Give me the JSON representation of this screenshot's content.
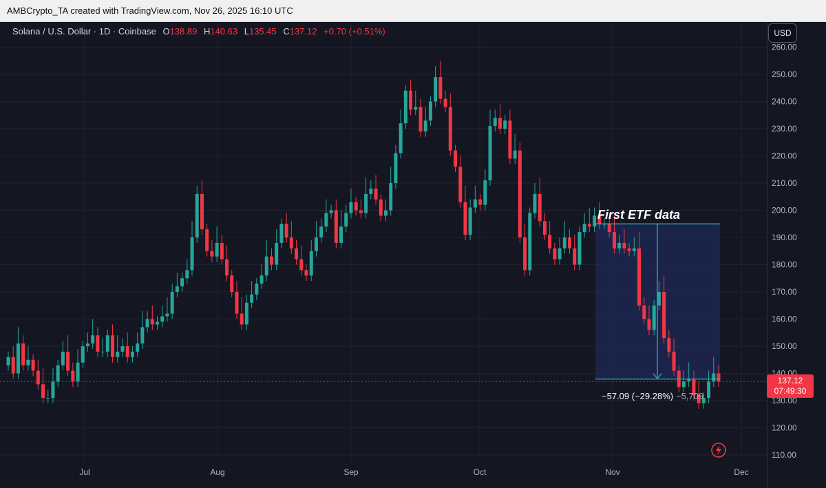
{
  "header": {
    "attribution": "AMBCrypto_TA created with TradingView.com, Nov 26, 2025 16:10 UTC"
  },
  "symbol": {
    "name": "Solana / U.S. Dollar · 1D · Coinbase",
    "open_label": "O",
    "open": "138.89",
    "high_label": "H",
    "high": "140.63",
    "low_label": "L",
    "low": "135.45",
    "close_label": "C",
    "close": "137.12",
    "change": "+0.70 (+0.51%)"
  },
  "currency_button": "USD",
  "price_tag": {
    "price": "137.12",
    "countdown": "07:49:30"
  },
  "annotations": {
    "etf_label": "First ETF data",
    "measure": "−57.09 (−29.28%)",
    "measure_overlap": "−5,709"
  },
  "colors": {
    "up": "#26a69a",
    "down": "#f23645",
    "background": "#141722",
    "highlight_box": "#1e2a55",
    "measure_line": "#2fb7c8"
  },
  "chart_data": {
    "type": "candlestick",
    "yaxis": {
      "ticks": [
        "110.00",
        "120.00",
        "130.00",
        "140.00",
        "150.00",
        "160.00",
        "170.00",
        "180.00",
        "190.00",
        "200.00",
        "210.00",
        "220.00",
        "230.00",
        "240.00",
        "250.00",
        "260.00"
      ],
      "ylim": [
        107,
        262
      ]
    },
    "xaxis": {
      "ticks": [
        "Jul",
        "Aug",
        "Sep",
        "Oct",
        "Nov",
        "Dec"
      ]
    },
    "closes": [
      146,
      140,
      151,
      143,
      145,
      141,
      136,
      131,
      131,
      137,
      143,
      148,
      141,
      137,
      144,
      150,
      151,
      154,
      148,
      148,
      154,
      146,
      148,
      150,
      146,
      148,
      151,
      157,
      160,
      158,
      159,
      161,
      162,
      170,
      172,
      175,
      178,
      190,
      206,
      193,
      185,
      183,
      188,
      182,
      176,
      170,
      162,
      158,
      166,
      169,
      173,
      176,
      183,
      180,
      188,
      195,
      190,
      186,
      182,
      178,
      176,
      185,
      190,
      194,
      199,
      200,
      188,
      194,
      199,
      203,
      200,
      199,
      206,
      208,
      204,
      198,
      200,
      210,
      221,
      232,
      244,
      237,
      238,
      229,
      233,
      240,
      249,
      241,
      238,
      222,
      216,
      203,
      191,
      201,
      204,
      202,
      211,
      231,
      234,
      230,
      233,
      219,
      222,
      190,
      178,
      199,
      206,
      196,
      191,
      186,
      182,
      186,
      190,
      186,
      180,
      192,
      195,
      194,
      198,
      195,
      195,
      192,
      186,
      188,
      186,
      185,
      186,
      165,
      160,
      156,
      165,
      170,
      153,
      148,
      141,
      135,
      137,
      138,
      132,
      129,
      131,
      137,
      140,
      137
    ],
    "measure": {
      "value": -57.09,
      "percent": -29.28,
      "from_price": 195,
      "to_price": 137.9
    },
    "highlight_box": {
      "price_top": 195,
      "price_bottom": 137.9
    }
  }
}
